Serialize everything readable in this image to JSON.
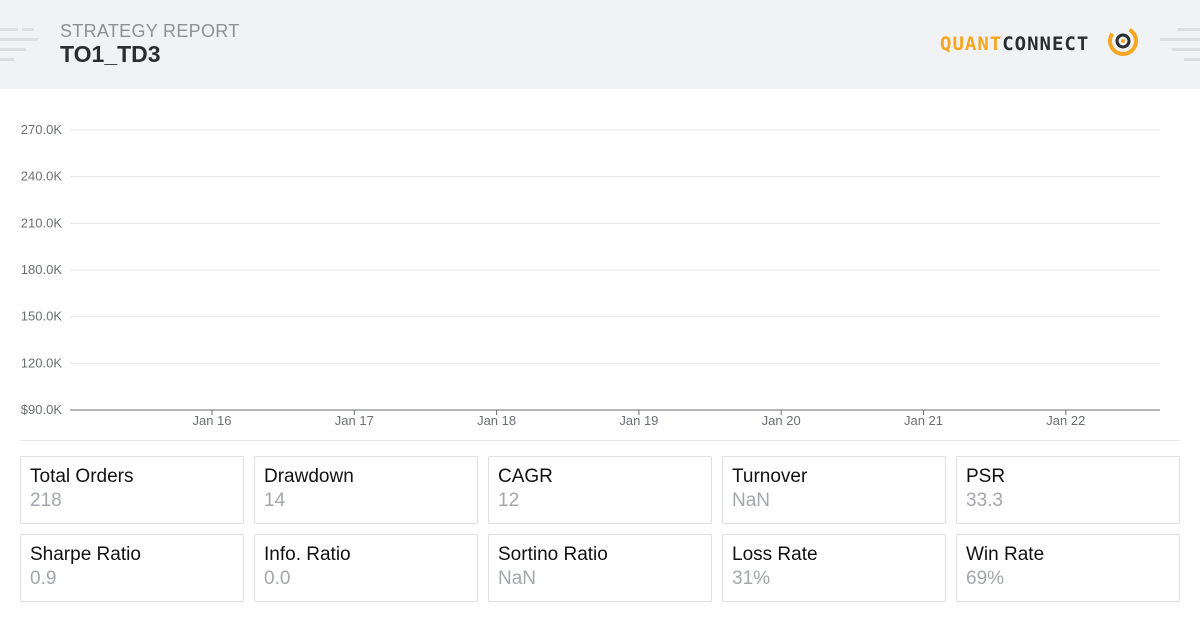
{
  "header": {
    "subtitle": "STRATEGY REPORT",
    "title": "TO1_TD3",
    "logo_part_a": "QUANT",
    "logo_part_b": "CONNECT",
    "logo_icon": "quantconnect-logo-icon",
    "colors": {
      "accent": "#f5a623",
      "background": "#f1f2f4",
      "text": "#2b2d31"
    }
  },
  "chart_data": {
    "type": "line",
    "y_ticks": [
      "270.0K",
      "240.0K",
      "210.0K",
      "180.0K",
      "150.0K",
      "120.0K",
      "$90.0K"
    ],
    "x_ticks": [
      "Jan 16",
      "Jan 17",
      "Jan 18",
      "Jan 19",
      "Jan 20",
      "Jan 21",
      "Jan 22"
    ],
    "ylim": [
      90000,
      270000
    ],
    "series": [],
    "grid": true
  },
  "stats": [
    {
      "label": "Total Orders",
      "value": "218"
    },
    {
      "label": "Drawdown",
      "value": "14"
    },
    {
      "label": "CAGR",
      "value": "12"
    },
    {
      "label": "Turnover",
      "value": "NaN"
    },
    {
      "label": "PSR",
      "value": "33.3"
    },
    {
      "label": "Sharpe Ratio",
      "value": "0.9"
    },
    {
      "label": "Info. Ratio",
      "value": "0.0"
    },
    {
      "label": "Sortino Ratio",
      "value": "NaN"
    },
    {
      "label": "Loss Rate",
      "value": "31%"
    },
    {
      "label": "Win Rate",
      "value": "69%"
    }
  ]
}
